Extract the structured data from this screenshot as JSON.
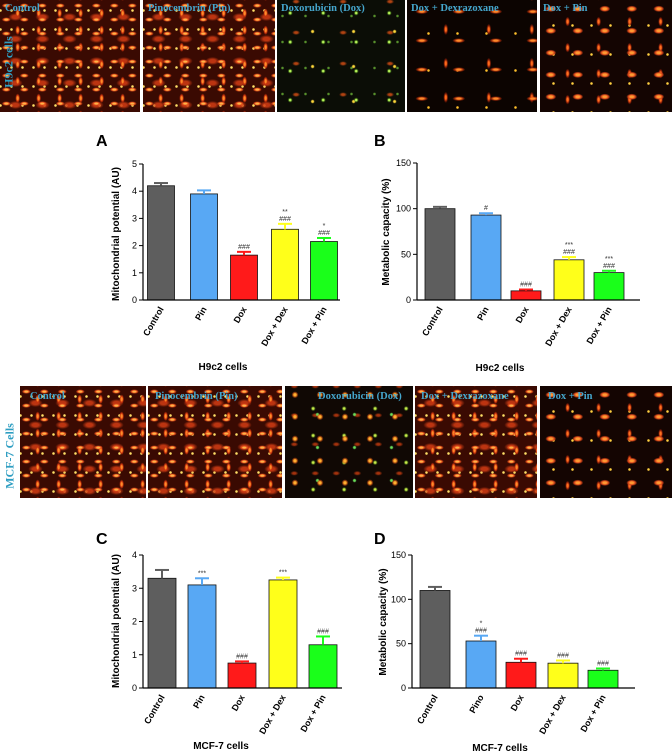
{
  "micrograph_rows": [
    {
      "cell_line_label": "H9c2 cells",
      "panels": [
        "Control",
        "Pinocembrin (Pin)",
        "Doxorubicin (Dox)",
        "Dox + Dexrazoxane",
        "Dox + Pin"
      ]
    },
    {
      "cell_line_label": "MCF-7 Cells",
      "panels": [
        "Control",
        "Pinocembrin (Pin)",
        "Doxorubicin (Dox)",
        "Dox + Dexrazoxane",
        "Dox + Pin"
      ]
    }
  ],
  "colors": {
    "micrograph_label": "#45a6cc",
    "cell_line_label": "#2f9ec2"
  },
  "chart_data": [
    {
      "panel_label": "A",
      "type": "bar",
      "categories": [
        "Control",
        "Pin",
        "Dox",
        "Dox + Dex",
        "Dox + Pin"
      ],
      "values": [
        4.2,
        3.9,
        1.65,
        2.6,
        2.15
      ],
      "errors": [
        0.1,
        0.13,
        0.12,
        0.2,
        0.13
      ],
      "annotations": [
        [],
        [],
        [
          "###"
        ],
        [
          "**",
          "###"
        ],
        [
          "*",
          "###"
        ]
      ],
      "colors": [
        "#5e5e5e",
        "#58a8f4",
        "#ff1a1a",
        "#ffff1a",
        "#1aff1a"
      ],
      "xlabel": "H9c2 cells",
      "ylabel": "Mitochondrial potential (AU)",
      "ylim": [
        0,
        5
      ],
      "yticks": [
        0,
        1,
        2,
        3,
        4,
        5
      ]
    },
    {
      "panel_label": "B",
      "type": "bar",
      "categories": [
        "Control",
        "Pin",
        "Dox",
        "Dox + Dex",
        "Dox + Pin"
      ],
      "values": [
        100,
        93,
        10,
        44,
        30
      ],
      "errors": [
        2,
        2,
        1.5,
        3,
        2
      ],
      "annotations": [
        [],
        [
          "#"
        ],
        [
          "###"
        ],
        [
          "***",
          "###"
        ],
        [
          "***",
          "###"
        ]
      ],
      "colors": [
        "#5e5e5e",
        "#58a8f4",
        "#ff1a1a",
        "#ffff1a",
        "#1aff1a"
      ],
      "xlabel": "H9c2 cells",
      "ylabel": "Metabolic capacity (%)",
      "ylim": [
        0,
        150
      ],
      "yticks": [
        0,
        50,
        100,
        150
      ]
    },
    {
      "panel_label": "C",
      "type": "bar",
      "categories": [
        "Control",
        "Pin",
        "Dox",
        "Dox + Dex",
        "Dox + Pin"
      ],
      "values": [
        3.3,
        3.1,
        0.75,
        3.25,
        1.3
      ],
      "errors": [
        0.25,
        0.2,
        0.05,
        0.07,
        0.25
      ],
      "annotations": [
        [],
        [
          "***"
        ],
        [
          "###"
        ],
        [
          "***"
        ],
        [
          "###"
        ]
      ],
      "colors": [
        "#5e5e5e",
        "#58a8f4",
        "#ff1a1a",
        "#ffff1a",
        "#1aff1a"
      ],
      "xlabel": "MCF-7 cells",
      "ylabel": "Mitochondrial potential (AU)",
      "ylim": [
        0,
        4
      ],
      "yticks": [
        0,
        1,
        2,
        3,
        4
      ]
    },
    {
      "panel_label": "D",
      "type": "bar",
      "categories": [
        "Control",
        "Pino",
        "Dox",
        "Dox + Dex",
        "Dox + Pin"
      ],
      "values": [
        110,
        53,
        29,
        28,
        20
      ],
      "errors": [
        4,
        6,
        4,
        3,
        2
      ],
      "annotations": [
        [],
        [
          "*",
          "###"
        ],
        [
          "###"
        ],
        [
          "###"
        ],
        [
          "###"
        ]
      ],
      "colors": [
        "#5e5e5e",
        "#58a8f4",
        "#ff1a1a",
        "#ffff1a",
        "#1aff1a"
      ],
      "xlabel": "MCF-7 cells",
      "ylabel": "Metabolic capacity (%)",
      "ylim": [
        0,
        150
      ],
      "yticks": [
        0,
        50,
        100,
        150
      ]
    }
  ]
}
